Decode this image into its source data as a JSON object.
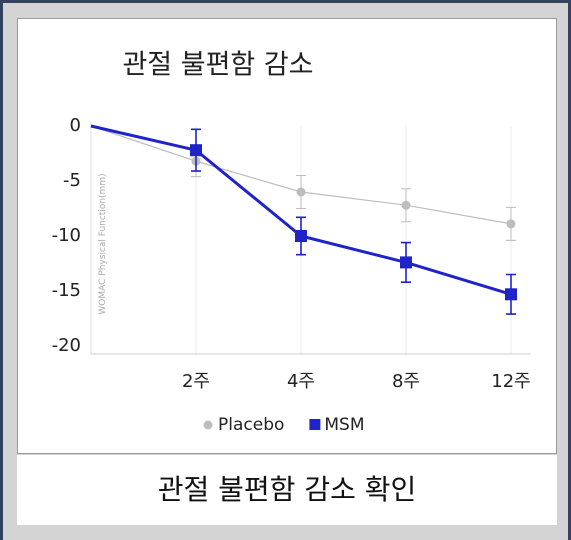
{
  "chart_data": {
    "type": "line",
    "title": "관절 불편함 감소",
    "y_label": "WOMAC Physical Function(mm)",
    "categories": [
      null,
      "2주",
      "4주",
      "8주",
      "12주"
    ],
    "series": [
      {
        "name": "Placebo",
        "color": "#bdbdbd",
        "marker": "circle",
        "values": [
          0,
          -3.2,
          -6.0,
          -7.2,
          -8.9
        ],
        "errors": [
          0,
          1.4,
          1.5,
          1.5,
          1.5
        ]
      },
      {
        "name": "MSM",
        "color": "#1f24c9",
        "marker": "square",
        "values": [
          0,
          -2.2,
          -10.0,
          -12.4,
          -15.3
        ],
        "errors": [
          0,
          1.9,
          1.7,
          1.8,
          1.8
        ]
      }
    ],
    "ylim": [
      -20,
      0
    ],
    "yticks": [
      0,
      -5,
      -10,
      -15,
      -20
    ],
    "grid": true,
    "legend": "bottom"
  },
  "caption": "관절 불편함 감소 확인"
}
